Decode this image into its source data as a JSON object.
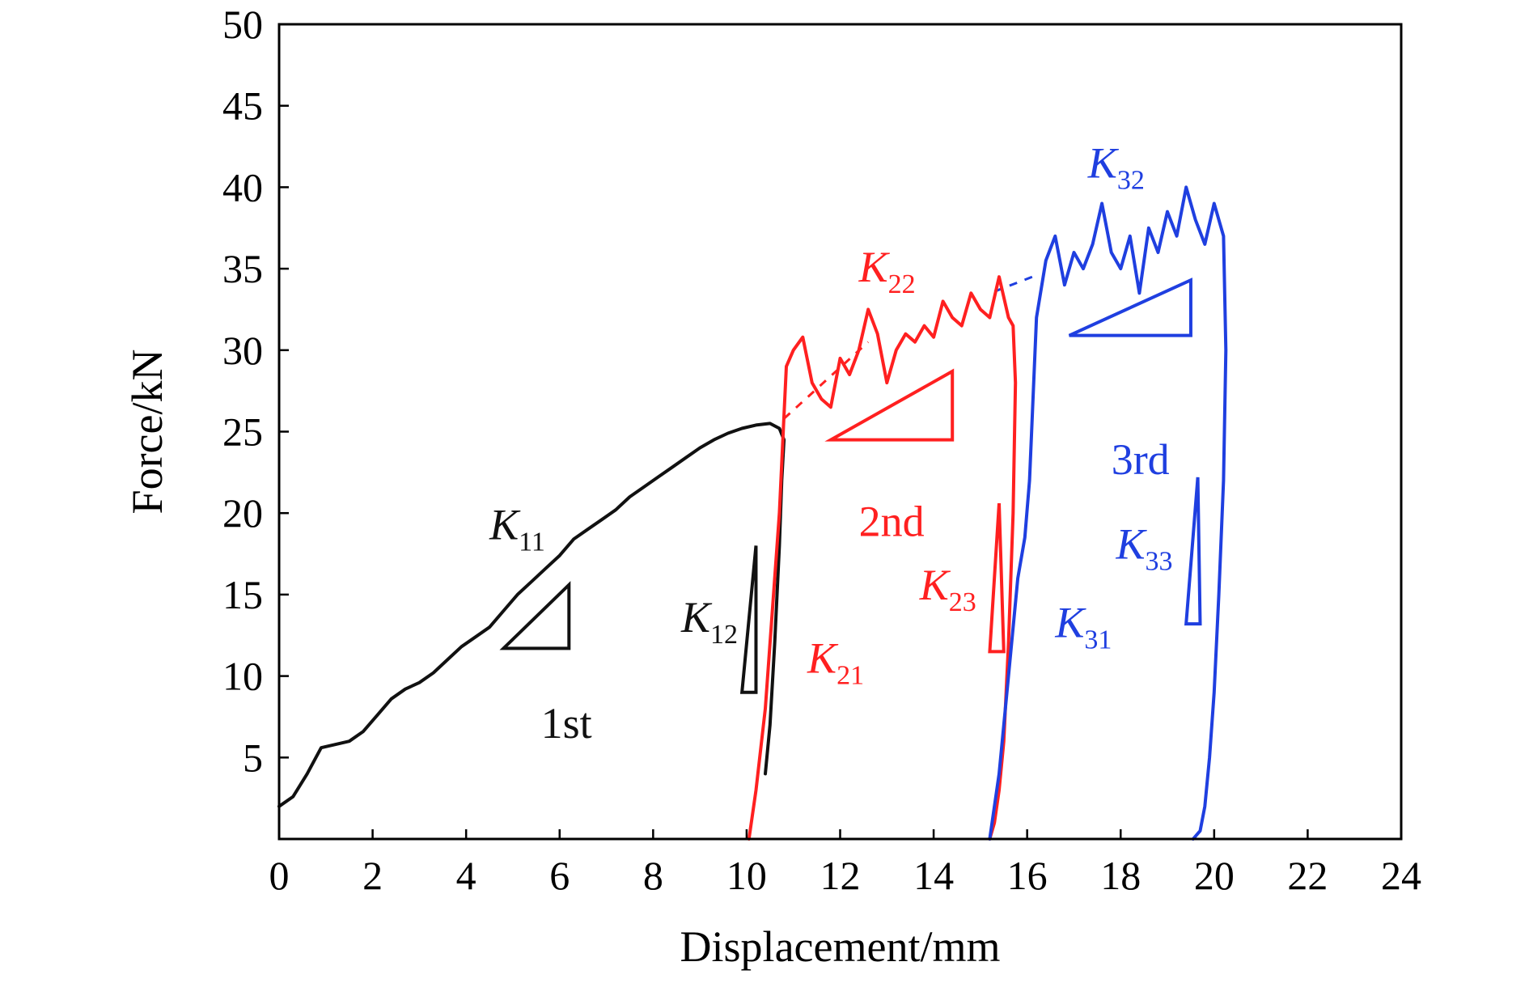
{
  "chart_data": {
    "type": "line",
    "title": "",
    "xlabel": "Displacement/mm",
    "ylabel": "Force/kN",
    "xlim": [
      0,
      24
    ],
    "ylim": [
      0,
      50
    ],
    "xticks": [
      0,
      2,
      4,
      6,
      8,
      10,
      12,
      14,
      16,
      18,
      20,
      22,
      24
    ],
    "yticks": [
      5,
      10,
      15,
      20,
      25,
      30,
      35,
      40,
      45,
      50
    ],
    "grid": false,
    "legend": "none",
    "series": [
      {
        "color": "#111111",
        "x": [
          0,
          0.3,
          0.6,
          0.9,
          1.2,
          1.5,
          1.8,
          2.1,
          2.4,
          2.7,
          3.0,
          3.3,
          3.6,
          3.9,
          4.2,
          4.5,
          4.8,
          5.1,
          5.4,
          5.7,
          6.0,
          6.3,
          6.6,
          6.9,
          7.2,
          7.5,
          7.8,
          8.1,
          8.4,
          8.7,
          9.0,
          9.3,
          9.6,
          9.9,
          10.2,
          10.5,
          10.7,
          10.8,
          10.75,
          10.7,
          10.6,
          10.5,
          10.4
        ],
        "y": [
          2.0,
          2.6,
          4.0,
          5.6,
          5.8,
          6.0,
          6.6,
          7.6,
          8.6,
          9.2,
          9.6,
          10.2,
          11.0,
          11.8,
          12.4,
          13.0,
          14.0,
          15.0,
          15.8,
          16.6,
          17.4,
          18.4,
          19.0,
          19.6,
          20.2,
          21.0,
          21.6,
          22.2,
          22.8,
          23.4,
          24.0,
          24.5,
          24.9,
          25.2,
          25.4,
          25.5,
          25.2,
          24.5,
          22.0,
          18.0,
          12.0,
          7.0,
          4.0
        ]
      },
      {
        "color": "#ff2020",
        "x": [
          10.05,
          10.2,
          10.4,
          10.55,
          10.7,
          10.8,
          10.85,
          11.0,
          11.2,
          11.4,
          11.6,
          11.8,
          12.0,
          12.2,
          12.4,
          12.6,
          12.8,
          13.0,
          13.2,
          13.4,
          13.6,
          13.8,
          14.0,
          14.2,
          14.4,
          14.6,
          14.8,
          15.0,
          15.2,
          15.4,
          15.6,
          15.7,
          15.75,
          15.7,
          15.6,
          15.5,
          15.4,
          15.3,
          15.2
        ],
        "y": [
          0,
          3.0,
          8.0,
          14.0,
          20.0,
          26.0,
          29.0,
          30.0,
          30.8,
          28.0,
          27.0,
          26.5,
          29.5,
          28.5,
          30.0,
          32.5,
          31.0,
          28.0,
          30.0,
          31.0,
          30.5,
          31.5,
          30.8,
          33.0,
          32.0,
          31.5,
          33.5,
          32.5,
          32.0,
          34.5,
          32.0,
          31.5,
          28.0,
          20.0,
          12.0,
          6.0,
          3.0,
          1.0,
          0
        ]
      },
      {
        "color": "#1f3fe0",
        "x": [
          15.2,
          15.4,
          15.6,
          15.8,
          15.95,
          16.05,
          16.2,
          16.4,
          16.6,
          16.8,
          17.0,
          17.2,
          17.4,
          17.6,
          17.8,
          18.0,
          18.2,
          18.4,
          18.6,
          18.8,
          19.0,
          19.2,
          19.4,
          19.6,
          19.8,
          20.0,
          20.1,
          20.2,
          20.25,
          20.2,
          20.1,
          20.0,
          19.9,
          19.8,
          19.7,
          19.55
        ],
        "y": [
          0,
          4.0,
          10.0,
          16.0,
          18.5,
          22.0,
          32.0,
          35.5,
          37.0,
          34.0,
          36.0,
          35.0,
          36.5,
          39.0,
          36.0,
          35.0,
          37.0,
          33.5,
          37.5,
          36.0,
          38.5,
          37.0,
          40.0,
          38.0,
          36.5,
          39.0,
          38.0,
          37.0,
          30.0,
          22.0,
          15.0,
          9.0,
          5.0,
          2.0,
          0.5,
          0
        ]
      }
    ],
    "annotations": [
      {
        "text": "K",
        "sub": "11",
        "color": "#111111",
        "x": 4.5,
        "y": 18.4
      },
      {
        "text": "K",
        "sub": "12",
        "color": "#111111",
        "x": 8.6,
        "y": 12.7
      },
      {
        "text": "1st",
        "color": "#111111",
        "x": 5.6,
        "y": 6.2
      },
      {
        "text": "K",
        "sub": "22",
        "color": "#ff2020",
        "x": 12.4,
        "y": 34.2
      },
      {
        "text": "2nd",
        "color": "#ff2020",
        "x": 12.4,
        "y": 18.6
      },
      {
        "text": "K",
        "sub": "23",
        "color": "#ff2020",
        "x": 13.7,
        "y": 14.7
      },
      {
        "text": "K",
        "sub": "21",
        "color": "#ff2020",
        "x": 11.3,
        "y": 10.2
      },
      {
        "text": "K",
        "sub": "32",
        "color": "#1f3fe0",
        "x": 17.3,
        "y": 40.6
      },
      {
        "text": "3rd",
        "color": "#1f3fe0",
        "x": 17.8,
        "y": 22.4
      },
      {
        "text": "K",
        "sub": "33",
        "color": "#1f3fe0",
        "x": 17.9,
        "y": 17.2
      },
      {
        "text": "K",
        "sub": "31",
        "color": "#1f3fe0",
        "x": 16.6,
        "y": 12.4
      }
    ]
  }
}
